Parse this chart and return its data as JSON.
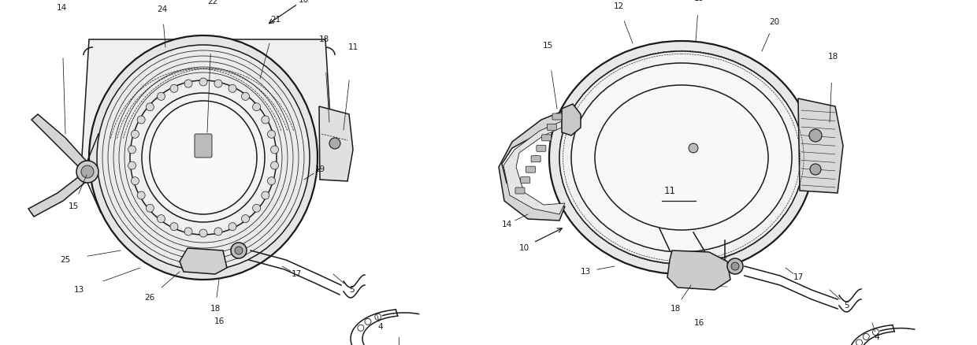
{
  "bg_color": "#ffffff",
  "line_color": "#1a1a1a",
  "fig_width": 12.4,
  "fig_height": 4.38,
  "dpi": 100,
  "lw_main": 1.1,
  "lw_thin": 0.6,
  "lw_thick": 1.6,
  "fs": 7.5
}
